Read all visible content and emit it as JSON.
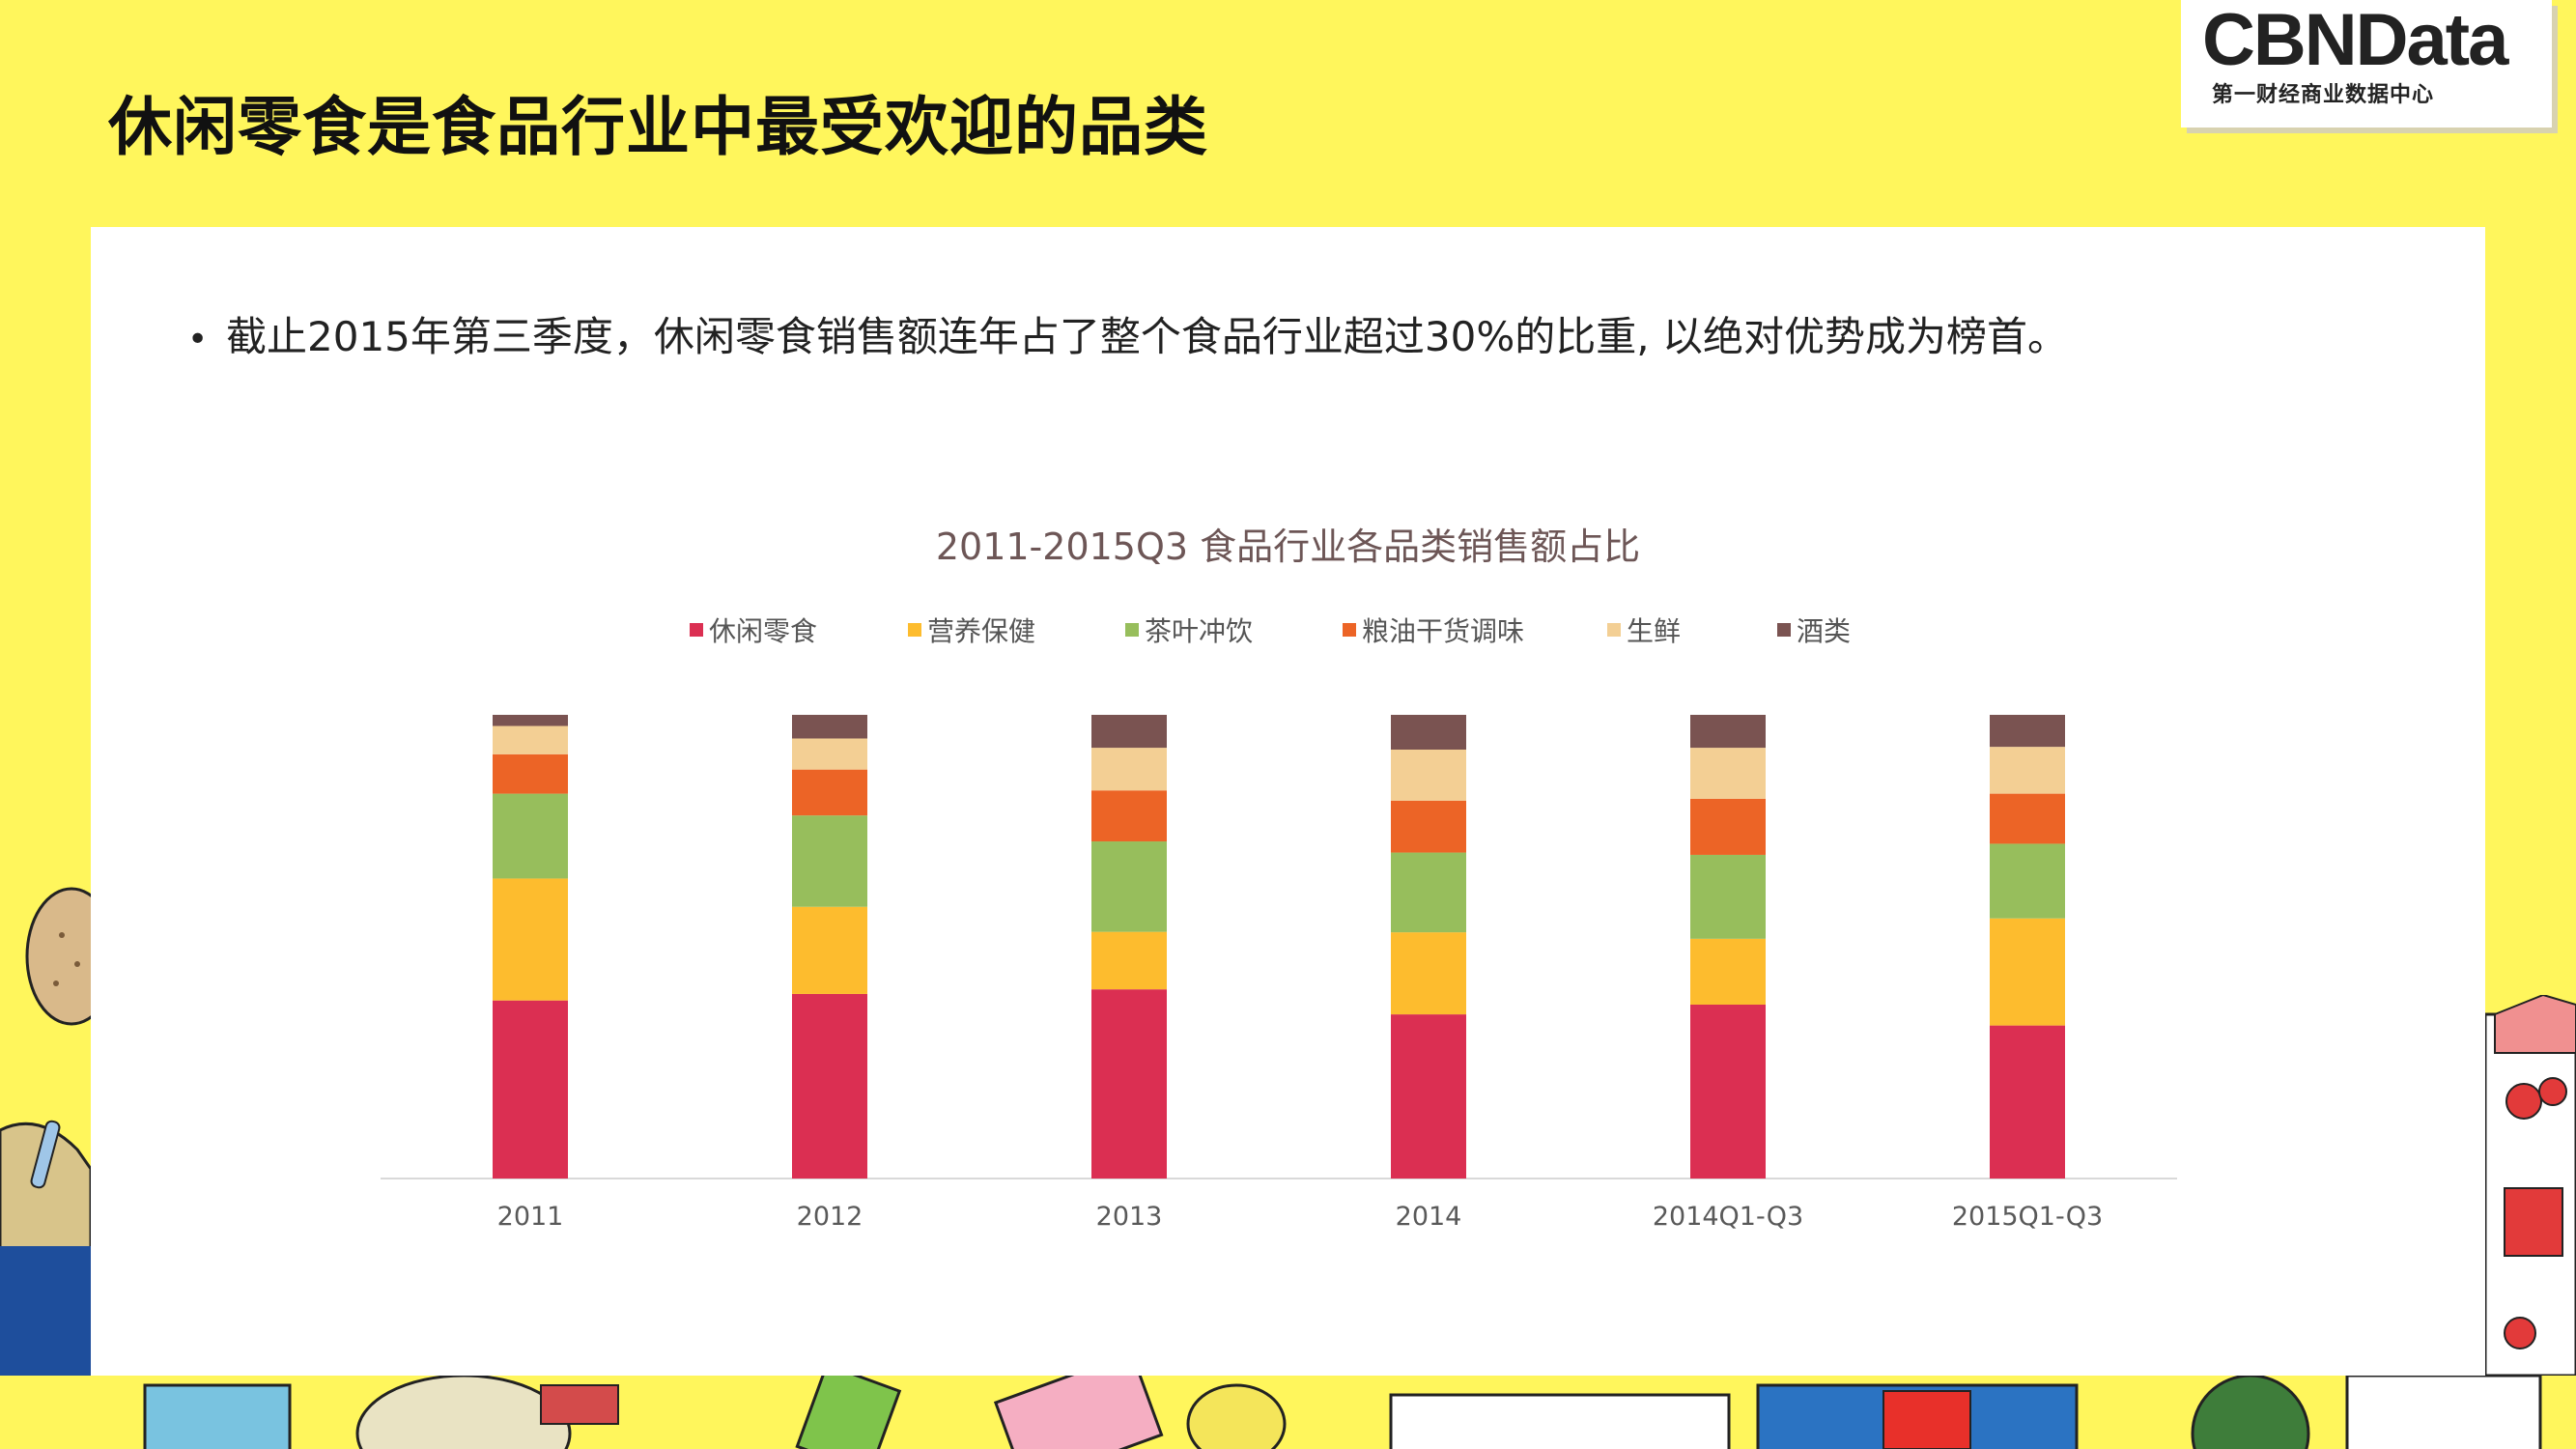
{
  "header": {
    "title": "休闲零食是食品行业中最受欢迎的品类",
    "logo_text": "CBNData",
    "logo_subtitle": "第一财经商业数据中心"
  },
  "bullet": {
    "marker": "•",
    "text": "截止2015年第三季度，休闲零食销售额连年占了整个食品行业超过30%的比重, 以绝对优势成为榜首。"
  },
  "colors": {
    "background": "#FFF65C",
    "card": "#FFFFFF",
    "axis": "#D9D9D9"
  },
  "chart_data": {
    "type": "bar",
    "stacked": true,
    "title": "2011-2015Q3 食品行业各品类销售额占比",
    "xlabel": "",
    "ylabel": "",
    "legend_position": "top",
    "grid": false,
    "categories": [
      "2011",
      "2012",
      "2013",
      "2014",
      "2014Q1-Q3",
      "2015Q1-Q3"
    ],
    "ylim": [
      0,
      1
    ],
    "series": [
      {
        "name": "休闲零食",
        "color": "#DB2F52",
        "values": [
          0.384,
          0.398,
          0.408,
          0.354,
          0.375,
          0.33
        ]
      },
      {
        "name": "营养保健",
        "color": "#FDBC2E",
        "values": [
          0.263,
          0.188,
          0.124,
          0.177,
          0.142,
          0.231
        ]
      },
      {
        "name": "茶叶冲饮",
        "color": "#97BE5C",
        "values": [
          0.183,
          0.197,
          0.195,
          0.172,
          0.181,
          0.161
        ]
      },
      {
        "name": "粮油干货调味",
        "color": "#EC6426",
        "values": [
          0.085,
          0.099,
          0.11,
          0.112,
          0.121,
          0.108
        ]
      },
      {
        "name": "生鲜",
        "color": "#F3CF94",
        "values": [
          0.061,
          0.067,
          0.092,
          0.11,
          0.11,
          0.101
        ]
      },
      {
        "name": "酒类",
        "color": "#7A5351",
        "values": [
          0.024,
          0.051,
          0.071,
          0.075,
          0.071,
          0.069
        ]
      }
    ]
  }
}
